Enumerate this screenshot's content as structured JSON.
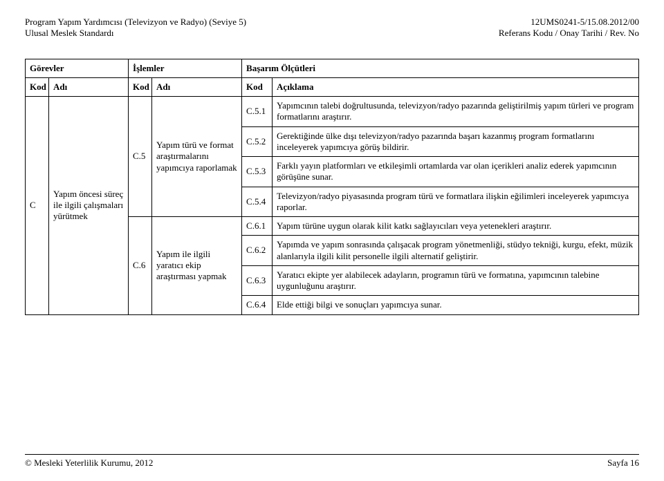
{
  "header": {
    "left_line1": "Program Yapım Yardımcısı (Televizyon ve Radyo) (Seviye 5)",
    "left_line2": "Ulusal Meslek Standardı",
    "right_line1": "12UMS0241-5/15.08.2012/00",
    "right_line2": "Referans Kodu / Onay Tarihi / Rev. No"
  },
  "table": {
    "head": {
      "gorevler": "Görevler",
      "islemler": "İşlemler",
      "basarim": "Başarım Ölçütleri",
      "kod": "Kod",
      "adi": "Adı",
      "aciklama": "Açıklama"
    },
    "task": {
      "kod": "C",
      "adi": "Yapım öncesi süreç ile ilgili çalışmaları yürütmek"
    },
    "op1": {
      "kod": "C.5",
      "adi": "Yapım türü ve format araştırmalarını yapımcıya raporlamak"
    },
    "op2": {
      "kod": "C.6",
      "adi": "Yapım ile ilgili yaratıcı ekip araştırması yapmak"
    },
    "r": {
      "c51_kod": "C.5.1",
      "c51": "Yapımcının talebi doğrultusunda, televizyon/radyo pazarında geliştirilmiş yapım türleri ve program formatlarını araştırır.",
      "c52_kod": "C.5.2",
      "c52": "Gerektiğinde ülke dışı televizyon/radyo pazarında başarı kazanmış program formatlarını inceleyerek yapımcıya görüş bildirir.",
      "c53_kod": "C.5.3",
      "c53": "Farklı yayın platformları ve etkileşimli ortamlarda var olan içerikleri analiz ederek yapımcının görüşüne sunar.",
      "c54_kod": "C.5.4",
      "c54": "Televizyon/radyo piyasasında program türü ve formatlara ilişkin eğilimleri inceleyerek yapımcıya raporlar.",
      "c61_kod": "C.6.1",
      "c61": "Yapım türüne uygun olarak kilit katkı sağlayıcıları veya yetenekleri araştırır.",
      "c62_kod": "C.6.2",
      "c62": "Yapımda ve yapım sonrasında çalışacak program yönetmenliği, stüdyo tekniği, kurgu, efekt, müzik alanlarıyla ilgili kilit personelle ilgili alternatif geliştirir.",
      "c63_kod": "C.6.3",
      "c63": "Yaratıcı ekipte yer alabilecek adayların, programın türü ve formatına, yapımcının talebine uygunluğunu araştırır.",
      "c64_kod": "C.6.4",
      "c64": "Elde ettiği bilgi ve sonuçları yapımcıya sunar."
    }
  },
  "footer": {
    "left": "© Mesleki Yeterlilik Kurumu, 2012",
    "right": "Sayfa 16"
  }
}
